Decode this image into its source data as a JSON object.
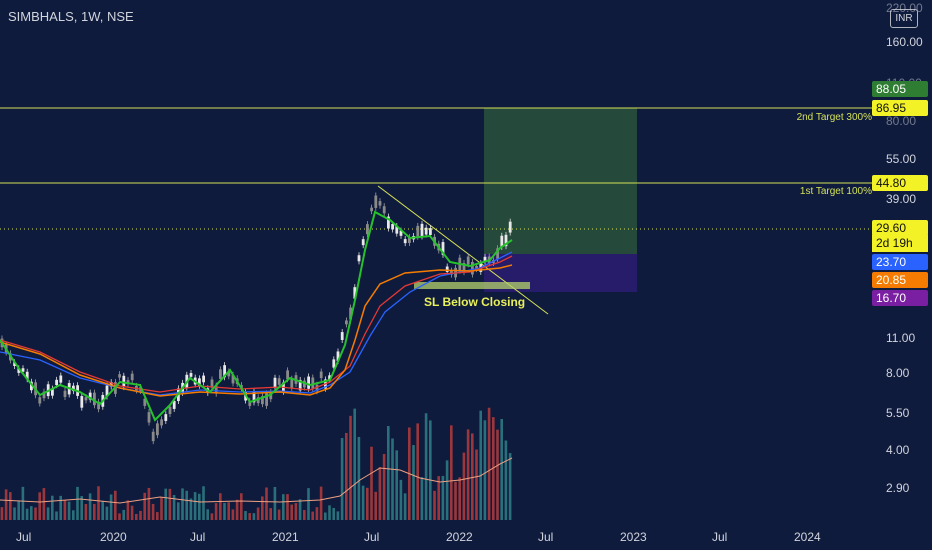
{
  "header": {
    "symbol": "SIMBHALS, 1W, NSE",
    "currency": "INR"
  },
  "y_axis": {
    "labels": [
      "220.00",
      "160.00",
      "110.00",
      "80.00",
      "55.00",
      "39.00",
      "29.60",
      "11.00",
      "8.00",
      "5.50",
      "4.00",
      "2.90"
    ]
  },
  "x_axis": {
    "labels": [
      "Jul",
      "2020",
      "Jul",
      "2021",
      "Jul",
      "2022",
      "Jul",
      "2023",
      "Jul",
      "2024"
    ]
  },
  "annotations": {
    "target2_label": "2nd Target 300%",
    "target1_label": "1st Target 100%",
    "stop_label": "SL Below Closing"
  },
  "price_tags": {
    "top": "88.05",
    "target2": "86.95",
    "target1": "44.80",
    "last": "29.60",
    "countdown": "2d 19h",
    "ema_fast": "23.70",
    "ema_slow": "20.85",
    "stop": "16.70"
  },
  "colors": {
    "background": "#0f1b3d",
    "level_line": "#d4e157",
    "target_zone": "#2e5a3a",
    "stop_zone": "#2a1d6e",
    "ema_green": "#26c22c",
    "ema_orange": "#f57c00",
    "ema_red": "#e53935",
    "ema_blue": "#2962ff",
    "candle_up": "#e0e0e0",
    "volume": "#b43c3c",
    "volume_alt": "#2f7f86",
    "tag_green": "#2e7d32",
    "tag_yellow": "#f2f227",
    "tag_blue": "#2962ff",
    "tag_orange": "#f57c00",
    "tag_purple": "#7b1fa2"
  }
}
